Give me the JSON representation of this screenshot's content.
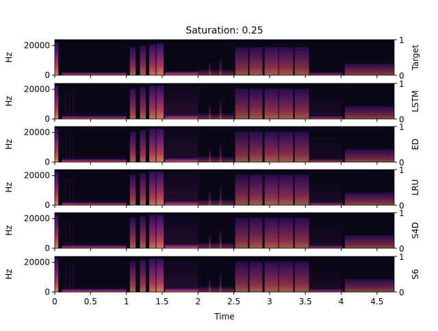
{
  "chart_data": {
    "type": "heatmap",
    "title": "Saturation: 0.25",
    "xlabel": "Time",
    "ylabel": "Hz",
    "xlim": [
      0,
      4.74
    ],
    "ylim": [
      0,
      24000
    ],
    "xticks": [
      "0",
      "0.5",
      "1",
      "1.5",
      "2",
      "2.5",
      "3",
      "3.5",
      "4",
      "4.5"
    ],
    "xtick_values": [
      0,
      0.5,
      1,
      1.5,
      2,
      2.5,
      3,
      3.5,
      4,
      4.5
    ],
    "yticks": [
      "0",
      "20000"
    ],
    "ytick_values": [
      0,
      20000
    ],
    "right_ticks": [
      "0",
      "1"
    ],
    "colormap": "magma",
    "colors": {
      "bg": "#0a0716",
      "low": "#3b0f70",
      "mid": "#8c2981",
      "high": "#de4968",
      "peak": "#fe9f6d"
    },
    "events": [
      {
        "t0": 0.0,
        "t1": 0.05,
        "fmax": 22000,
        "level": 0.85
      },
      {
        "t0": 0.1,
        "t1": 1.0,
        "fmax": 2000,
        "level": 0.7
      },
      {
        "t0": 1.05,
        "t1": 1.13,
        "fmax": 19000,
        "level": 0.65
      },
      {
        "t0": 1.19,
        "t1": 1.27,
        "fmax": 20000,
        "level": 0.65
      },
      {
        "t0": 1.32,
        "t1": 1.41,
        "fmax": 21000,
        "level": 0.75
      },
      {
        "t0": 1.42,
        "t1": 1.52,
        "fmax": 21500,
        "level": 0.8
      },
      {
        "t0": 1.54,
        "t1": 2.0,
        "fmax": 2500,
        "level": 0.8
      },
      {
        "t0": 2.0,
        "t1": 2.5,
        "fmax": 3500,
        "level": 0.4
      },
      {
        "t0": 2.15,
        "t1": 2.18,
        "fmax": 8000,
        "level": 0.35
      },
      {
        "t0": 2.3,
        "t1": 2.33,
        "fmax": 11000,
        "level": 0.35
      },
      {
        "t0": 2.52,
        "t1": 2.7,
        "fmax": 19000,
        "level": 0.55
      },
      {
        "t0": 2.72,
        "t1": 2.9,
        "fmax": 19000,
        "level": 0.6
      },
      {
        "t0": 2.93,
        "t1": 3.12,
        "fmax": 19000,
        "level": 0.62
      },
      {
        "t0": 3.13,
        "t1": 3.33,
        "fmax": 19000,
        "level": 0.6
      },
      {
        "t0": 3.35,
        "t1": 3.55,
        "fmax": 19000,
        "level": 0.58
      },
      {
        "t0": 3.56,
        "t1": 4.02,
        "fmax": 2000,
        "level": 0.55
      },
      {
        "t0": 4.05,
        "t1": 4.74,
        "fmax": 8000,
        "level": 0.5
      }
    ],
    "panels": [
      {
        "label": "Target",
        "noise": 0.0
      },
      {
        "label": "LSTM",
        "noise": 0.45
      },
      {
        "label": "ED",
        "noise": 0.35
      },
      {
        "label": "LRU",
        "noise": 0.4
      },
      {
        "label": "S4D",
        "noise": 0.38
      },
      {
        "label": "S6",
        "noise": 0.42
      }
    ]
  }
}
